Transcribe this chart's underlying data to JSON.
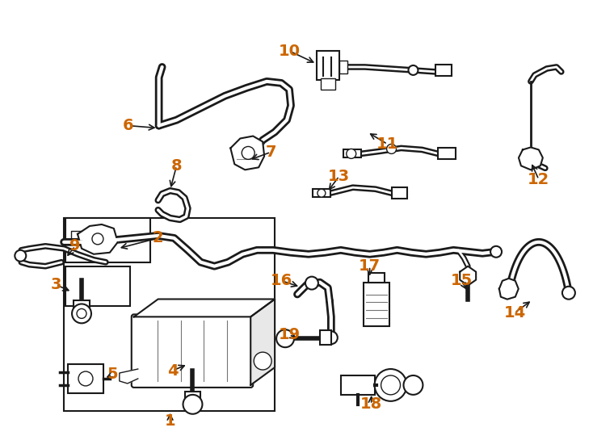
{
  "background_color": "#ffffff",
  "line_color": "#1a1a1a",
  "label_color": "#cc6600",
  "fig_width": 7.34,
  "fig_height": 5.4,
  "dpi": 100,
  "xlim": [
    0,
    734
  ],
  "ylim": [
    0,
    540
  ]
}
